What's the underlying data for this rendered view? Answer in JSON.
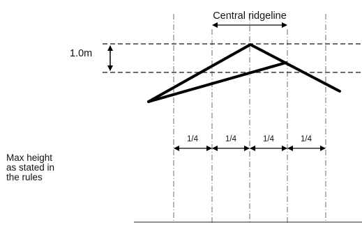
{
  "diagram": {
    "ridgeline_label": "Central ridgeline",
    "height_label": "1.0m",
    "segment_labels": [
      "1/4",
      "1/4",
      "1/4",
      "1/4"
    ],
    "note_lines": [
      "Max height",
      "as stated in",
      "the rules"
    ]
  }
}
